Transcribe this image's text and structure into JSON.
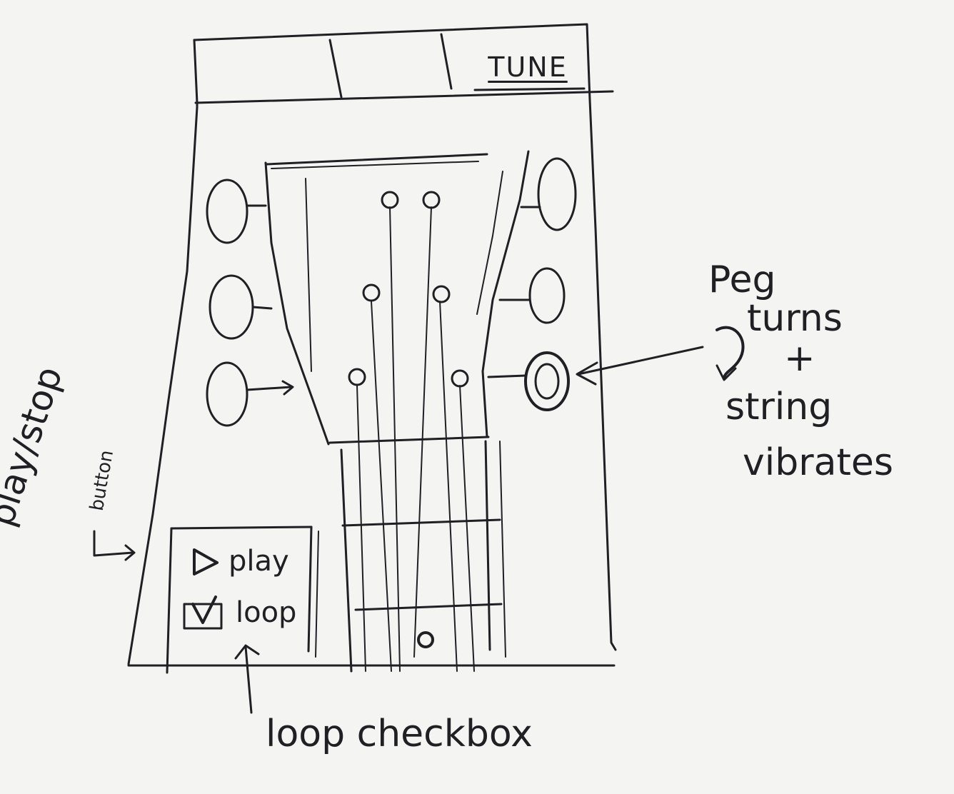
{
  "header": {
    "tabs": [
      {
        "label": ""
      },
      {
        "label": ""
      },
      {
        "label": "TUNE"
      }
    ]
  },
  "controls": {
    "play_label": "play",
    "loop_label": "loop",
    "loop_checked": true
  },
  "annotations": {
    "peg": {
      "line1": "Peg",
      "line2": "turns",
      "line3": "+",
      "line4": "string",
      "line5": "vibrates"
    },
    "play_stop": {
      "line1": "play/stop",
      "line2": "button"
    },
    "loop_checkbox": "loop checkbox"
  }
}
